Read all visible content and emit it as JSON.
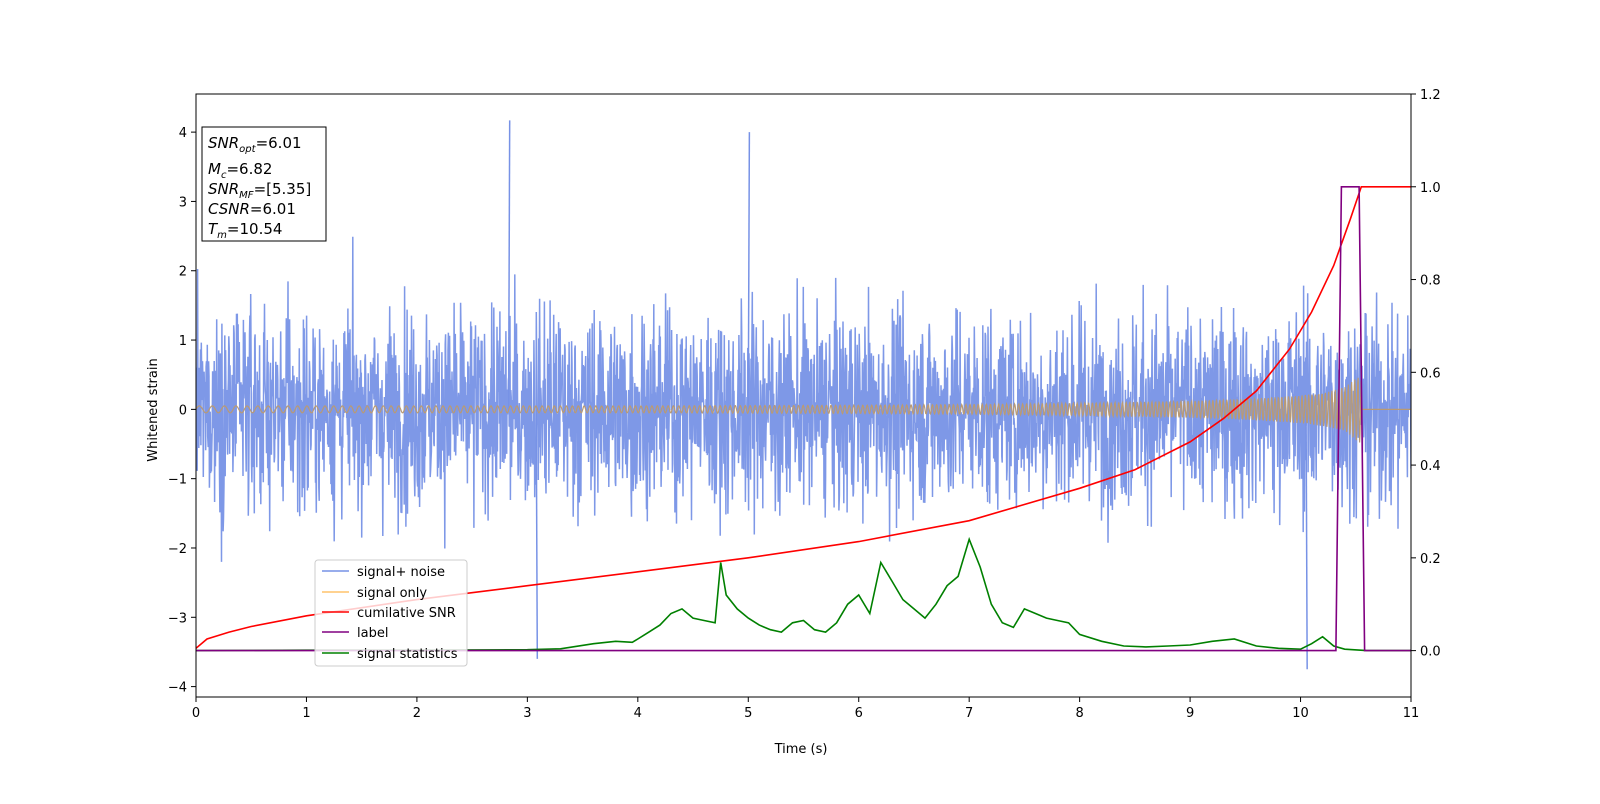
{
  "chart_data": {
    "type": "line",
    "xlabel": "Time (s)",
    "ylabel": "Whitened strain",
    "xlim": [
      0,
      11
    ],
    "ylim": [
      -4.15,
      4.55
    ],
    "y2lim": [
      -0.1,
      1.2
    ],
    "x_ticks": [
      "0",
      "1",
      "2",
      "3",
      "4",
      "5",
      "6",
      "7",
      "8",
      "9",
      "10",
      "11"
    ],
    "y_ticks": [
      "−4",
      "−3",
      "−2",
      "−1",
      "0",
      "1",
      "2",
      "3",
      "4"
    ],
    "y2_ticks": [
      "0.0",
      "0.2",
      "0.4",
      "0.6",
      "0.8",
      "1.0",
      "1.2"
    ],
    "legend_placement": "lower-left",
    "colors": {
      "signal_noise": "#7792e6",
      "signal_only": "#b99a74",
      "cumulative_snr": "#ff0000",
      "label": "#800080",
      "signal_statistics": "#008000"
    },
    "annotation": {
      "lines": [
        {
          "main": "SNR",
          "sub": "opt",
          "value": "=6.01"
        },
        {
          "main": "M",
          "sub": "c",
          "value": "=6.82"
        },
        {
          "main": "SNR",
          "sub": "MF",
          "value": "=[5.35]"
        },
        {
          "main": "CSNR",
          "sub": "",
          "value": "=6.01"
        },
        {
          "main": "T",
          "sub": "m",
          "value": "=10.54"
        }
      ]
    },
    "series": [
      {
        "name": "signal+ noise",
        "axis": "left",
        "description_values": {
          "x_range": [
            0,
            11
          ],
          "typical_range": [
            -2.5,
            2.5
          ],
          "peaks": [
            [
              2.83,
              4.17
            ],
            [
              5.0,
              4.0
            ],
            [
              10.05,
              -3.75
            ],
            [
              3.08,
              -3.6
            ]
          ]
        }
      },
      {
        "name": "signal only",
        "axis": "left",
        "envelope": {
          "x": [
            0,
            2,
            4,
            6,
            7,
            8,
            9,
            9.5,
            10,
            10.2,
            10.4,
            10.5,
            10.55
          ],
          "amp": [
            0.05,
            0.05,
            0.05,
            0.06,
            0.07,
            0.09,
            0.12,
            0.15,
            0.2,
            0.24,
            0.32,
            0.45,
            0.5
          ]
        }
      },
      {
        "name": "cumilative SNR",
        "axis": "right",
        "x": [
          0,
          0.1,
          0.3,
          0.5,
          1,
          2,
          3,
          4,
          5,
          6,
          7,
          8,
          8.5,
          9,
          9.3,
          9.6,
          9.9,
          10.1,
          10.3,
          10.45,
          10.55,
          11
        ],
        "y": [
          0.005,
          0.025,
          0.04,
          0.052,
          0.075,
          0.11,
          0.14,
          0.17,
          0.2,
          0.235,
          0.28,
          0.35,
          0.39,
          0.45,
          0.5,
          0.56,
          0.65,
          0.73,
          0.83,
          0.93,
          1.0,
          1.0
        ]
      },
      {
        "name": "label",
        "axis": "right",
        "x": [
          0,
          10.32,
          10.37,
          10.53,
          10.58,
          11
        ],
        "y": [
          0,
          0,
          1.0,
          1.0,
          0,
          0
        ]
      },
      {
        "name": "signal statistics",
        "axis": "right",
        "x": [
          0,
          1,
          2,
          3,
          3.3,
          3.6,
          3.8,
          3.95,
          4.0,
          4.1,
          4.2,
          4.3,
          4.4,
          4.5,
          4.6,
          4.7,
          4.75,
          4.8,
          4.9,
          5.0,
          5.1,
          5.2,
          5.3,
          5.4,
          5.5,
          5.6,
          5.7,
          5.8,
          5.9,
          6.0,
          6.1,
          6.2,
          6.3,
          6.4,
          6.5,
          6.6,
          6.7,
          6.8,
          6.9,
          7.0,
          7.1,
          7.2,
          7.3,
          7.4,
          7.5,
          7.6,
          7.7,
          7.8,
          7.9,
          8.0,
          8.2,
          8.4,
          8.6,
          8.8,
          9.0,
          9.2,
          9.4,
          9.6,
          9.8,
          10.0,
          10.1,
          10.2,
          10.3,
          10.4,
          10.6,
          11
        ],
        "y": [
          0.0,
          0.001,
          0.001,
          0.002,
          0.004,
          0.015,
          0.02,
          0.018,
          0.025,
          0.04,
          0.055,
          0.08,
          0.09,
          0.07,
          0.065,
          0.06,
          0.19,
          0.12,
          0.09,
          0.07,
          0.055,
          0.045,
          0.04,
          0.06,
          0.065,
          0.045,
          0.04,
          0.06,
          0.1,
          0.12,
          0.08,
          0.19,
          0.15,
          0.11,
          0.09,
          0.07,
          0.1,
          0.14,
          0.16,
          0.24,
          0.18,
          0.1,
          0.06,
          0.05,
          0.09,
          0.08,
          0.07,
          0.065,
          0.06,
          0.035,
          0.02,
          0.01,
          0.008,
          0.01,
          0.012,
          0.02,
          0.025,
          0.01,
          0.005,
          0.003,
          0.015,
          0.03,
          0.01,
          0.003,
          0.0,
          0.0
        ]
      }
    ]
  }
}
